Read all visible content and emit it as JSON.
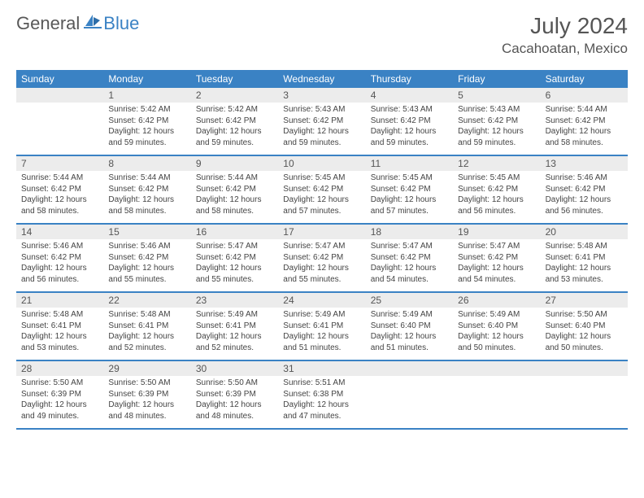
{
  "brand": {
    "general": "General",
    "blue": "Blue"
  },
  "title": "July 2024",
  "location": "Cacahoatan, Mexico",
  "colors": {
    "header_bg": "#3a82c4",
    "weekday_text": "#ffffff",
    "daynum_bg": "#ececec",
    "body_text": "#444444",
    "page_bg": "#ffffff"
  },
  "weekdays": [
    "Sunday",
    "Monday",
    "Tuesday",
    "Wednesday",
    "Thursday",
    "Friday",
    "Saturday"
  ],
  "weeks": [
    [
      {
        "num": "",
        "lines": []
      },
      {
        "num": "1",
        "lines": [
          "Sunrise: 5:42 AM",
          "Sunset: 6:42 PM",
          "Daylight: 12 hours",
          "and 59 minutes."
        ]
      },
      {
        "num": "2",
        "lines": [
          "Sunrise: 5:42 AM",
          "Sunset: 6:42 PM",
          "Daylight: 12 hours",
          "and 59 minutes."
        ]
      },
      {
        "num": "3",
        "lines": [
          "Sunrise: 5:43 AM",
          "Sunset: 6:42 PM",
          "Daylight: 12 hours",
          "and 59 minutes."
        ]
      },
      {
        "num": "4",
        "lines": [
          "Sunrise: 5:43 AM",
          "Sunset: 6:42 PM",
          "Daylight: 12 hours",
          "and 59 minutes."
        ]
      },
      {
        "num": "5",
        "lines": [
          "Sunrise: 5:43 AM",
          "Sunset: 6:42 PM",
          "Daylight: 12 hours",
          "and 59 minutes."
        ]
      },
      {
        "num": "6",
        "lines": [
          "Sunrise: 5:44 AM",
          "Sunset: 6:42 PM",
          "Daylight: 12 hours",
          "and 58 minutes."
        ]
      }
    ],
    [
      {
        "num": "7",
        "lines": [
          "Sunrise: 5:44 AM",
          "Sunset: 6:42 PM",
          "Daylight: 12 hours",
          "and 58 minutes."
        ]
      },
      {
        "num": "8",
        "lines": [
          "Sunrise: 5:44 AM",
          "Sunset: 6:42 PM",
          "Daylight: 12 hours",
          "and 58 minutes."
        ]
      },
      {
        "num": "9",
        "lines": [
          "Sunrise: 5:44 AM",
          "Sunset: 6:42 PM",
          "Daylight: 12 hours",
          "and 58 minutes."
        ]
      },
      {
        "num": "10",
        "lines": [
          "Sunrise: 5:45 AM",
          "Sunset: 6:42 PM",
          "Daylight: 12 hours",
          "and 57 minutes."
        ]
      },
      {
        "num": "11",
        "lines": [
          "Sunrise: 5:45 AM",
          "Sunset: 6:42 PM",
          "Daylight: 12 hours",
          "and 57 minutes."
        ]
      },
      {
        "num": "12",
        "lines": [
          "Sunrise: 5:45 AM",
          "Sunset: 6:42 PM",
          "Daylight: 12 hours",
          "and 56 minutes."
        ]
      },
      {
        "num": "13",
        "lines": [
          "Sunrise: 5:46 AM",
          "Sunset: 6:42 PM",
          "Daylight: 12 hours",
          "and 56 minutes."
        ]
      }
    ],
    [
      {
        "num": "14",
        "lines": [
          "Sunrise: 5:46 AM",
          "Sunset: 6:42 PM",
          "Daylight: 12 hours",
          "and 56 minutes."
        ]
      },
      {
        "num": "15",
        "lines": [
          "Sunrise: 5:46 AM",
          "Sunset: 6:42 PM",
          "Daylight: 12 hours",
          "and 55 minutes."
        ]
      },
      {
        "num": "16",
        "lines": [
          "Sunrise: 5:47 AM",
          "Sunset: 6:42 PM",
          "Daylight: 12 hours",
          "and 55 minutes."
        ]
      },
      {
        "num": "17",
        "lines": [
          "Sunrise: 5:47 AM",
          "Sunset: 6:42 PM",
          "Daylight: 12 hours",
          "and 55 minutes."
        ]
      },
      {
        "num": "18",
        "lines": [
          "Sunrise: 5:47 AM",
          "Sunset: 6:42 PM",
          "Daylight: 12 hours",
          "and 54 minutes."
        ]
      },
      {
        "num": "19",
        "lines": [
          "Sunrise: 5:47 AM",
          "Sunset: 6:42 PM",
          "Daylight: 12 hours",
          "and 54 minutes."
        ]
      },
      {
        "num": "20",
        "lines": [
          "Sunrise: 5:48 AM",
          "Sunset: 6:41 PM",
          "Daylight: 12 hours",
          "and 53 minutes."
        ]
      }
    ],
    [
      {
        "num": "21",
        "lines": [
          "Sunrise: 5:48 AM",
          "Sunset: 6:41 PM",
          "Daylight: 12 hours",
          "and 53 minutes."
        ]
      },
      {
        "num": "22",
        "lines": [
          "Sunrise: 5:48 AM",
          "Sunset: 6:41 PM",
          "Daylight: 12 hours",
          "and 52 minutes."
        ]
      },
      {
        "num": "23",
        "lines": [
          "Sunrise: 5:49 AM",
          "Sunset: 6:41 PM",
          "Daylight: 12 hours",
          "and 52 minutes."
        ]
      },
      {
        "num": "24",
        "lines": [
          "Sunrise: 5:49 AM",
          "Sunset: 6:41 PM",
          "Daylight: 12 hours",
          "and 51 minutes."
        ]
      },
      {
        "num": "25",
        "lines": [
          "Sunrise: 5:49 AM",
          "Sunset: 6:40 PM",
          "Daylight: 12 hours",
          "and 51 minutes."
        ]
      },
      {
        "num": "26",
        "lines": [
          "Sunrise: 5:49 AM",
          "Sunset: 6:40 PM",
          "Daylight: 12 hours",
          "and 50 minutes."
        ]
      },
      {
        "num": "27",
        "lines": [
          "Sunrise: 5:50 AM",
          "Sunset: 6:40 PM",
          "Daylight: 12 hours",
          "and 50 minutes."
        ]
      }
    ],
    [
      {
        "num": "28",
        "lines": [
          "Sunrise: 5:50 AM",
          "Sunset: 6:39 PM",
          "Daylight: 12 hours",
          "and 49 minutes."
        ]
      },
      {
        "num": "29",
        "lines": [
          "Sunrise: 5:50 AM",
          "Sunset: 6:39 PM",
          "Daylight: 12 hours",
          "and 48 minutes."
        ]
      },
      {
        "num": "30",
        "lines": [
          "Sunrise: 5:50 AM",
          "Sunset: 6:39 PM",
          "Daylight: 12 hours",
          "and 48 minutes."
        ]
      },
      {
        "num": "31",
        "lines": [
          "Sunrise: 5:51 AM",
          "Sunset: 6:38 PM",
          "Daylight: 12 hours",
          "and 47 minutes."
        ]
      },
      {
        "num": "",
        "lines": []
      },
      {
        "num": "",
        "lines": []
      },
      {
        "num": "",
        "lines": []
      }
    ]
  ]
}
